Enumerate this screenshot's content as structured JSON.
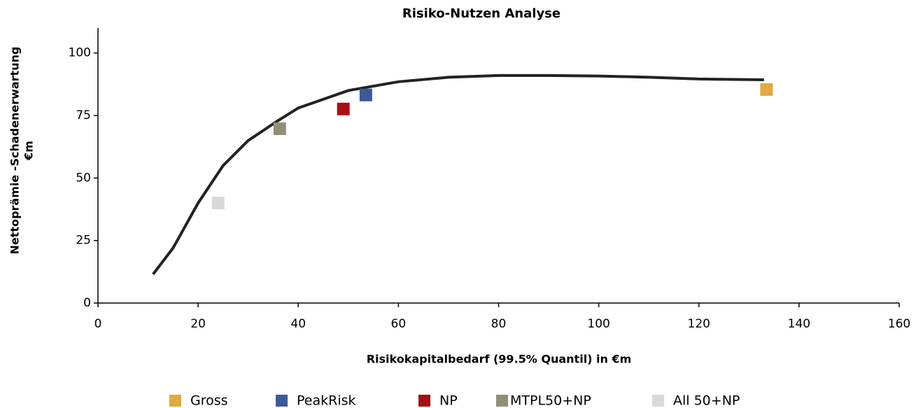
{
  "chart_data": {
    "type": "scatter",
    "title": "Risiko-Nutzen Analyse",
    "xlabel": "Risikokapitalbedarf (99.5% Quantil) in €m",
    "ylabel": [
      "Nettoprämie -Schadenerwartung",
      "€m"
    ],
    "xlim": [
      0,
      160
    ],
    "xticks": [
      0,
      20,
      40,
      60,
      80,
      100,
      120,
      140,
      160
    ],
    "ylim": [
      0,
      110
    ],
    "yticks": [
      0,
      25,
      50,
      75,
      100
    ],
    "series": [
      {
        "name": "Gross",
        "color": "#e0a942",
        "x": [
          133.5
        ],
        "y": [
          85.4
        ]
      },
      {
        "name": "PeakRisk",
        "color": "#3c5a97",
        "x": [
          53.5
        ],
        "y": [
          83.2
        ]
      },
      {
        "name": "NP",
        "color": "#a80f14",
        "x": [
          49
        ],
        "y": [
          77.6
        ]
      },
      {
        "name": "MTPL50+NP",
        "color": "#948e77",
        "x": [
          36.3
        ],
        "y": [
          69.7
        ]
      },
      {
        "name": "All 50+NP",
        "color": "#d9d9d9",
        "x": [
          24
        ],
        "y": [
          40
        ]
      }
    ],
    "line": {
      "color": "#222222",
      "x": [
        11,
        15,
        20,
        25,
        30,
        36,
        40,
        50,
        60,
        70,
        80,
        90,
        100,
        110,
        120,
        133
      ],
      "y": [
        11.5,
        22,
        40,
        55,
        65,
        73,
        78,
        85,
        88.5,
        90.3,
        91,
        91,
        90.8,
        90.3,
        89.6,
        89.3
      ]
    }
  }
}
